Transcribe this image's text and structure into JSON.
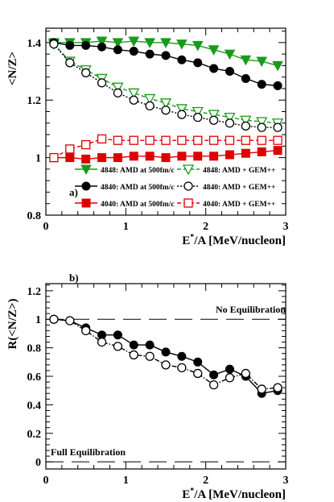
{
  "chart_data": [
    {
      "type": "line",
      "panel_label": "a)",
      "xlabel_main": "E",
      "xlabel_sup": "*",
      "xlabel_rest": "/A [MeV/nucleon]",
      "ylabel": "<N/Z>",
      "xlim": [
        0,
        3
      ],
      "ylim": [
        0.8,
        1.45
      ],
      "xticks": [
        0,
        1,
        2,
        3
      ],
      "xtick_labels": [
        "0",
        "1",
        "2",
        "3"
      ],
      "yticks": [
        0.8,
        1.0,
        1.2,
        1.4
      ],
      "ytick_labels": [
        "0.8",
        "1",
        "1.2",
        "1.4"
      ],
      "legend_placement": "bottom",
      "legend_entries": [
        "4848: AMD at 500fm/c",
        "4848: AMD + GEM++",
        "4840: AMD at 500fm/c",
        "4840: AMD + GEM++",
        "4040: AMD at 500fm/c",
        "4040: AMD + GEM++"
      ],
      "x": [
        0.1,
        0.3,
        0.5,
        0.7,
        0.9,
        1.1,
        1.3,
        1.5,
        1.7,
        1.9,
        2.1,
        2.3,
        2.5,
        2.7,
        2.9
      ],
      "series": [
        {
          "name": "4848: AMD at 500fm/c",
          "color": "#1a9a1a",
          "marker": "triangle-down-filled",
          "line": "solid",
          "values": [
            1.4,
            1.4,
            1.4,
            1.405,
            1.4,
            1.405,
            1.4,
            1.4,
            1.395,
            1.39,
            1.375,
            1.36,
            1.34,
            1.335,
            1.32
          ]
        },
        {
          "name": "4848: AMD + GEM++",
          "color": "#1a9a1a",
          "marker": "triangle-down-open",
          "line": "dashed",
          "values": [
            1.395,
            1.335,
            1.305,
            1.275,
            1.245,
            1.225,
            1.205,
            1.19,
            1.17,
            1.16,
            1.15,
            1.14,
            1.13,
            1.125,
            1.12
          ]
        },
        {
          "name": "4840: AMD at 500fm/c",
          "color": "#000000",
          "marker": "circle-filled",
          "line": "solid",
          "values": [
            1.4,
            1.39,
            1.39,
            1.385,
            1.375,
            1.37,
            1.36,
            1.355,
            1.34,
            1.33,
            1.31,
            1.3,
            1.275,
            1.255,
            1.25
          ]
        },
        {
          "name": "4840: AMD + GEM++",
          "color": "#000000",
          "marker": "circle-open",
          "line": "dotted",
          "values": [
            1.395,
            1.33,
            1.295,
            1.26,
            1.225,
            1.2,
            1.18,
            1.165,
            1.15,
            1.14,
            1.13,
            1.12,
            1.11,
            1.105,
            1.105
          ]
        },
        {
          "name": "4040: AMD at 500fm/c",
          "color": "#dd0000",
          "marker": "square-filled",
          "line": "solid",
          "values": [
            1.0,
            1.0,
            0.995,
            1.0,
            1.0,
            1.005,
            1.005,
            1.0,
            1.005,
            1.005,
            1.005,
            1.01,
            1.015,
            1.02,
            1.025
          ]
        },
        {
          "name": "4040: AMD + GEM++",
          "color": "#dd0000",
          "marker": "square-open",
          "line": "dashed",
          "values": [
            1.0,
            1.03,
            1.045,
            1.065,
            1.06,
            1.06,
            1.06,
            1.06,
            1.06,
            1.06,
            1.06,
            1.06,
            1.06,
            1.06,
            1.06
          ]
        }
      ]
    },
    {
      "type": "line",
      "panel_label": "b)",
      "xlabel_main": "E",
      "xlabel_sup": "*",
      "xlabel_rest": "/A [MeV/nucleon]",
      "ylabel": "R(<N/Z>)",
      "xlim": [
        0,
        3
      ],
      "ylim": [
        -0.05,
        1.25
      ],
      "xticks": [
        0,
        1,
        2,
        3
      ],
      "xtick_labels": [
        "0",
        "1",
        "2",
        "3"
      ],
      "yticks": [
        0,
        0.2,
        0.4,
        0.6,
        0.8,
        1.0,
        1.2
      ],
      "ytick_labels": [
        "0",
        "0.2",
        "0.4",
        "0.6",
        "0.8",
        "1",
        "1.2"
      ],
      "reference_lines": [
        {
          "y": 1.0,
          "label": "No Equilibration"
        },
        {
          "y": 0.0,
          "label": "Full Equilibration"
        }
      ],
      "x": [
        0.1,
        0.3,
        0.5,
        0.7,
        0.9,
        1.1,
        1.3,
        1.5,
        1.7,
        1.9,
        2.1,
        2.3,
        2.5,
        2.7,
        2.9
      ],
      "series": [
        {
          "color": "#000000",
          "marker": "circle-filled",
          "line": "solid",
          "values": [
            1.0,
            0.99,
            0.94,
            0.89,
            0.89,
            0.82,
            0.82,
            0.77,
            0.74,
            0.7,
            0.61,
            0.65,
            0.6,
            0.48,
            0.5
          ]
        },
        {
          "color": "#000000",
          "marker": "circle-open",
          "line": "dashdot",
          "values": [
            1.0,
            0.99,
            0.92,
            0.84,
            0.81,
            0.75,
            0.74,
            0.68,
            0.66,
            0.62,
            0.54,
            0.59,
            0.62,
            0.51,
            0.52
          ]
        }
      ]
    }
  ]
}
